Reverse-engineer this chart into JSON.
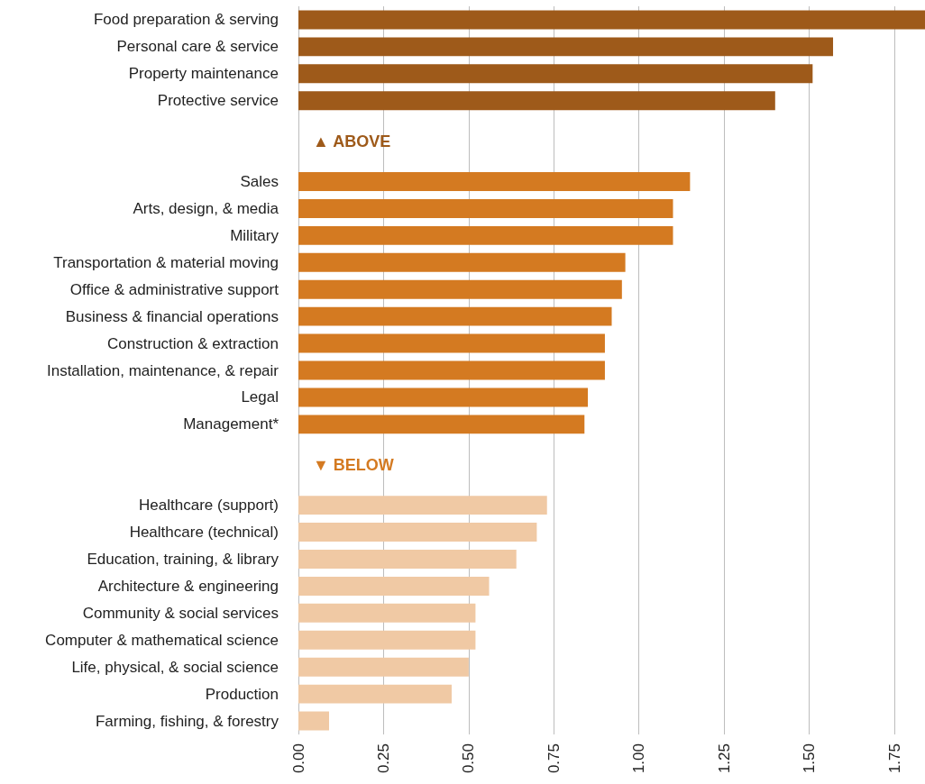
{
  "chart_data": {
    "type": "bar",
    "orientation": "horizontal",
    "categories": [
      "Food preparation & serving",
      "Personal care & service",
      "Property maintenance",
      "Protective service",
      null,
      null,
      "Sales",
      "Arts, design, & media",
      "Military",
      "Transportation & material moving",
      "Office & administrative support",
      "Business & financial operations",
      "Construction & extraction",
      "Installation, maintenance, & repair",
      "Legal",
      "Management*",
      null,
      null,
      "Healthcare (support)",
      "Healthcare (technical)",
      "Education, training, & library",
      "Architecture & engineering",
      "Community & social services",
      "Computer & mathematical science",
      "Life, physical, & social science",
      "Production",
      "Farming, fishing, & forestry"
    ],
    "values": [
      1.84,
      1.57,
      1.51,
      1.4,
      null,
      null,
      1.15,
      1.1,
      1.1,
      0.96,
      0.95,
      0.92,
      0.9,
      0.9,
      0.85,
      0.84,
      null,
      null,
      0.73,
      0.7,
      0.64,
      0.56,
      0.52,
      0.52,
      0.5,
      0.45,
      0.09
    ],
    "colors": [
      "#9e5a1a",
      "#9e5a1a",
      "#9e5a1a",
      "#9e5a1a",
      null,
      null,
      "#d47a21",
      "#d47a21",
      "#d47a21",
      "#d47a21",
      "#d47a21",
      "#d47a21",
      "#d47a21",
      "#d47a21",
      "#d47a21",
      "#d47a21",
      null,
      null,
      "#f0c9a4",
      "#f0c9a4",
      "#f0c9a4",
      "#f0c9a4",
      "#f0c9a4",
      "#f0c9a4",
      "#f0c9a4",
      "#f0c9a4",
      "#f0c9a4"
    ],
    "annotations": [
      "▲ ABOVE",
      "▼ BELOW"
    ],
    "xlim": [
      0,
      1.84
    ],
    "xticks": [
      {
        "value": 0,
        "label": "0.00"
      },
      {
        "value": 0.25,
        "label": "0.25"
      },
      {
        "value": 0.5,
        "label": "0.50"
      },
      {
        "value": 0.75,
        "label": "0.75"
      },
      {
        "value": 1,
        "label": "1.00"
      },
      {
        "value": 1.25,
        "label": "1.25"
      },
      {
        "value": 1.5,
        "label": "1.50"
      },
      {
        "value": 1.75,
        "label": "1.75"
      }
    ],
    "grid": "x"
  }
}
